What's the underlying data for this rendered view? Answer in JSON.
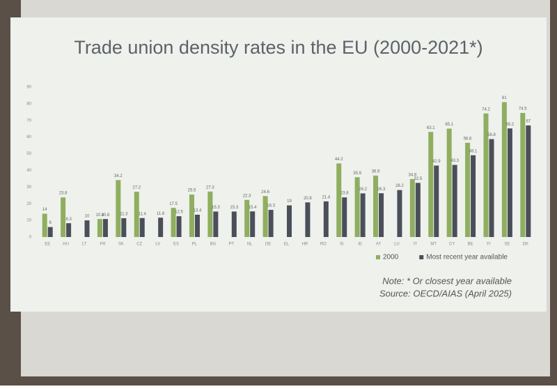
{
  "chart_data": {
    "type": "bar",
    "title": "Trade union density rates in the EU (2000-2021*)",
    "categories": [
      "EE",
      "HU",
      "LT",
      "FR",
      "SK",
      "CZ",
      "LV",
      "ES",
      "PL",
      "BG",
      "PT",
      "NL",
      "DE",
      "EL",
      "HR",
      "RO",
      "SI",
      "IE",
      "AT",
      "LU",
      "IT",
      "MT",
      "CY",
      "BE",
      "FI",
      "SE",
      "DK"
    ],
    "series": [
      {
        "name": "2000",
        "color": "#8fae5f",
        "values": [
          14,
          23.8,
          null,
          10.8,
          34.2,
          27.2,
          null,
          17.5,
          25.5,
          27.3,
          null,
          22.3,
          24.6,
          null,
          null,
          null,
          44.2,
          35.9,
          36.9,
          null,
          34.8,
          63.1,
          65.1,
          56.6,
          74.2,
          81,
          74.5
        ]
      },
      {
        "name": "Most recent year available",
        "color": "#4a4f5a",
        "values": [
          6,
          8.3,
          10,
          10.8,
          11.3,
          11.4,
          11.6,
          12.5,
          13.4,
          15.3,
          15.3,
          15.4,
          16.3,
          19,
          20.8,
          21.4,
          23.8,
          26.2,
          26.3,
          28.2,
          32.5,
          42.9,
          43.3,
          49.1,
          58.8,
          65.2,
          67
        ]
      }
    ],
    "ylim": [
      0,
      90
    ],
    "yticks": [
      0,
      10,
      20,
      30,
      40,
      50,
      60,
      70,
      80,
      90
    ],
    "grid": false,
    "legend": "bottom-right",
    "note": "Note: * Or closest year available",
    "source": "Source: OECD/AIAS (April 2025)"
  }
}
